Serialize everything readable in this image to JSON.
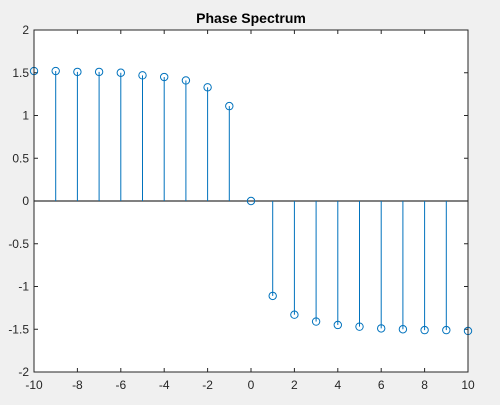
{
  "chart_data": {
    "type": "stem",
    "title": "Phase Spectrum",
    "xlabel": "",
    "ylabel": "",
    "xlim": [
      -10,
      10
    ],
    "ylim": [
      -2,
      2
    ],
    "xticks": [
      -10,
      -8,
      -6,
      -4,
      -2,
      0,
      2,
      4,
      6,
      8,
      10
    ],
    "xtick_labels": [
      "-10",
      "-8",
      "-6",
      "-4",
      "-2",
      "0",
      "2",
      "4",
      "6",
      "8",
      "10"
    ],
    "yticks": [
      -2,
      -1.5,
      -1,
      -0.5,
      0,
      0.5,
      1,
      1.5,
      2
    ],
    "ytick_labels": [
      "-2",
      "-1.5",
      "-1",
      "-0.5",
      "0",
      "0.5",
      "1",
      "1.5",
      "2"
    ],
    "grid": false,
    "x": [
      -10,
      -9,
      -8,
      -7,
      -6,
      -5,
      -4,
      -3,
      -2,
      -1,
      0,
      1,
      2,
      3,
      4,
      5,
      6,
      7,
      8,
      9,
      10
    ],
    "y": [
      1.52,
      1.52,
      1.51,
      1.51,
      1.5,
      1.47,
      1.45,
      1.41,
      1.33,
      1.11,
      0.0,
      -1.11,
      -1.33,
      -1.41,
      -1.45,
      -1.47,
      -1.49,
      -1.5,
      -1.51,
      -1.51,
      -1.52
    ],
    "marker": "o",
    "stem_color": "#0072bd",
    "baseline_color": "#000000"
  },
  "colors": {
    "background": "#f0f0f0",
    "axes_background": "#ffffff",
    "axes_border": "#262626",
    "text": "#000000"
  }
}
